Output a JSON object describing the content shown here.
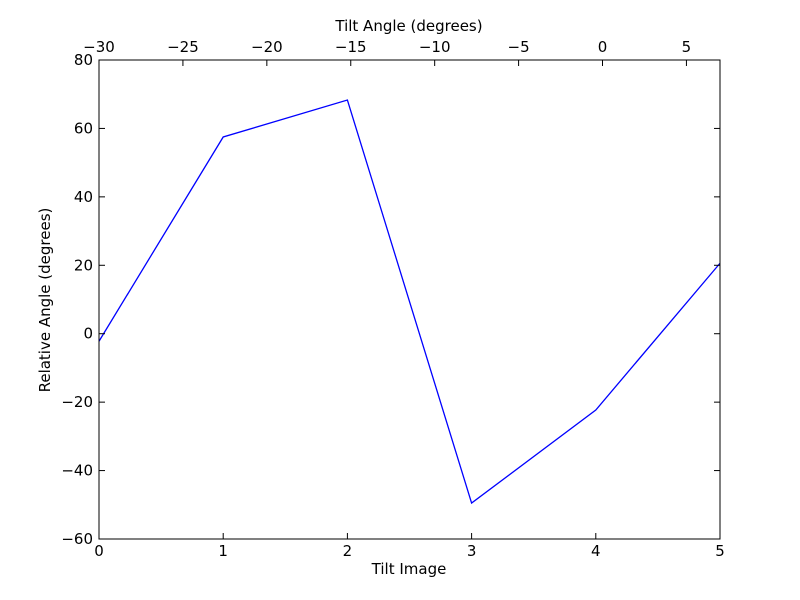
{
  "chart_data": {
    "type": "line",
    "xlabel": "Tilt Image",
    "ylabel": "Relative Angle (degrees)",
    "x2label": "Tilt Angle (degrees)",
    "x": [
      0,
      1,
      2,
      3,
      4,
      5
    ],
    "values": [
      -2.2,
      57.5,
      68.3,
      -49.5,
      -22.3,
      20.6
    ],
    "color": "#0000ff",
    "xlim": [
      0,
      5
    ],
    "xticks": [
      0,
      1,
      2,
      3,
      4,
      5
    ],
    "ylim": [
      -60,
      80
    ],
    "yticks": [
      {
        "value": -60,
        "label": "−60"
      },
      {
        "value": -40,
        "label": "−40"
      },
      {
        "value": -20,
        "label": "−20"
      },
      0,
      20,
      40,
      60,
      80
    ],
    "x2lim": [
      -30,
      7
    ],
    "x2ticks": [
      {
        "value": -30,
        "label": "−30"
      },
      {
        "value": -25,
        "label": "−25"
      },
      {
        "value": -20,
        "label": "−20"
      },
      {
        "value": -15,
        "label": "−15"
      },
      {
        "value": -10,
        "label": "−10"
      },
      {
        "value": -5,
        "label": "−5"
      },
      0,
      5
    ]
  }
}
